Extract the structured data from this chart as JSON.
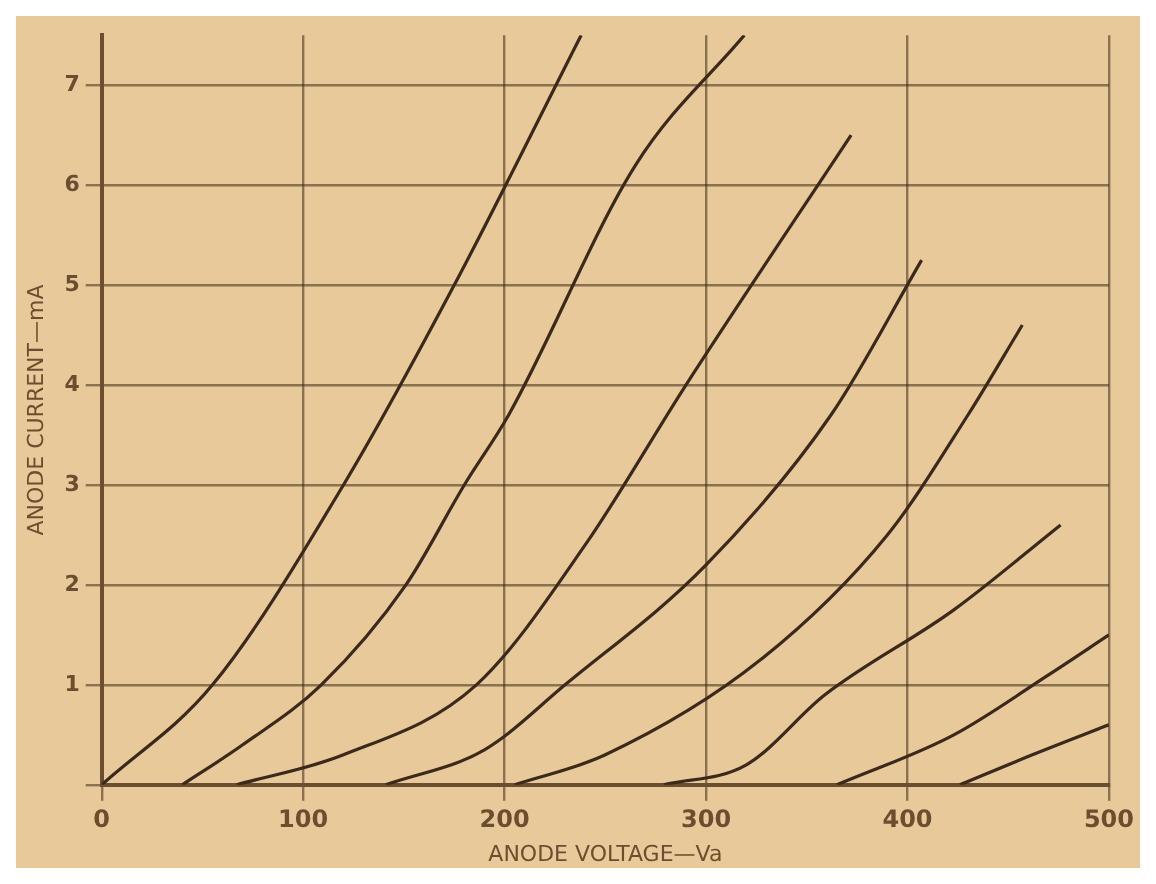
{
  "chart_data": {
    "type": "line",
    "xlabel": "ANODE VOLTAGE—Va",
    "ylabel": "ANODE CURRENT—mA",
    "xlim": [
      0,
      500
    ],
    "ylim": [
      0,
      7.5
    ],
    "xticks": [
      0,
      100,
      200,
      300,
      400,
      500
    ],
    "yticks": [
      {
        "value": 0,
        "label": null
      },
      1,
      2,
      3,
      4,
      5,
      6,
      7
    ],
    "grid": true,
    "marker": "none",
    "line_style": "solid",
    "series": [
      {
        "color": "#3b2a1c",
        "x": [
          0,
          55,
          120,
          175,
          238
        ],
        "values": [
          0,
          1,
          3,
          5,
          7.5
        ]
      },
      {
        "color": "#3b2a1c",
        "x": [
          40,
          70,
          109,
          151,
          180,
          202,
          265,
          319
        ],
        "values": [
          0,
          0.4,
          1,
          2,
          3,
          3.7,
          6.2,
          7.5
        ]
      },
      {
        "color": "#3b2a1c",
        "x": [
          67,
          120,
          186,
          240,
          290,
          372
        ],
        "values": [
          0,
          0.3,
          1,
          2.4,
          4,
          6.5
        ]
      },
      {
        "color": "#3b2a1c",
        "x": [
          141,
          190,
          230,
          300,
          362,
          407
        ],
        "values": [
          0,
          0.35,
          1,
          2.2,
          3.7,
          5.25
        ]
      },
      {
        "color": "#3b2a1c",
        "x": [
          205,
          250,
          327,
          390,
          430,
          457
        ],
        "values": [
          0,
          0.3,
          1.25,
          2.5,
          3.7,
          4.6
        ]
      },
      {
        "color": "#3b2a1c",
        "x": [
          279,
          320,
          359,
          423,
          476
        ],
        "values": [
          0,
          0.2,
          0.9,
          1.75,
          2.6
        ]
      },
      {
        "color": "#3b2a1c",
        "x": [
          365,
          423,
          470,
          500
        ],
        "values": [
          0,
          0.5,
          1.1,
          1.5
        ]
      },
      {
        "color": "#3b2a1c",
        "x": [
          426,
          462,
          500
        ],
        "values": [
          0,
          0.3,
          0.6
        ]
      }
    ]
  }
}
